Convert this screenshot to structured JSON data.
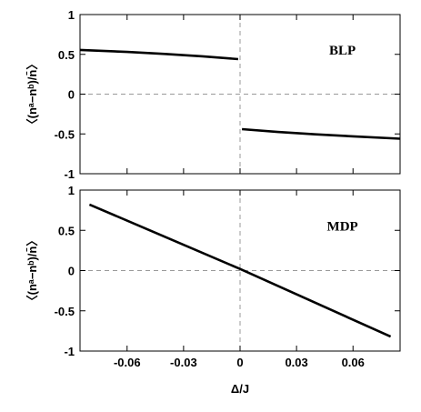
{
  "chart_data": [
    {
      "type": "line",
      "panel_label": "BLP",
      "ylabel": "〈(nᵃ−nᵇ)/n̄〉",
      "xlabel": "",
      "xlim": [
        -0.085,
        0.085
      ],
      "ylim": [
        -1,
        1
      ],
      "xticks": [
        -0.06,
        -0.03,
        0,
        0.03,
        0.06
      ],
      "yticks": [
        1,
        0.5,
        0,
        -0.5,
        -1
      ],
      "ytick_labels": [
        "1",
        "0.5",
        "0",
        "-0.5",
        "-1"
      ],
      "zero_lines": true,
      "series": [
        {
          "values": [
            [
              -0.085,
              0.555
            ],
            [
              -0.06,
              0.53
            ],
            [
              -0.04,
              0.505
            ],
            [
              -0.02,
              0.475
            ],
            [
              -0.001,
              0.44
            ]
          ]
        },
        {
          "values": [
            [
              0.001,
              -0.44
            ],
            [
              0.02,
              -0.475
            ],
            [
              0.04,
              -0.505
            ],
            [
              0.06,
              -0.53
            ],
            [
              0.085,
              -0.56
            ]
          ]
        }
      ]
    },
    {
      "type": "line",
      "panel_label": "MDP",
      "ylabel": "〈(nᵃ−nᵇ)/n̄〉",
      "xlabel": "Δ/J",
      "xlim": [
        -0.085,
        0.085
      ],
      "ylim": [
        -1,
        1
      ],
      "xticks": [
        -0.06,
        -0.03,
        0,
        0.03,
        0.06
      ],
      "xtick_labels": [
        "-0.06",
        "-0.03",
        "0",
        "0.03",
        "0.06"
      ],
      "yticks": [
        1,
        0.5,
        0,
        -0.5,
        -1
      ],
      "ytick_labels": [
        "1",
        "0.5",
        "0",
        "-0.5",
        "-1"
      ],
      "zero_lines": true,
      "series": [
        {
          "values": [
            [
              -0.08,
              0.82
            ],
            [
              0.0,
              0.02
            ],
            [
              0.08,
              -0.82
            ]
          ]
        }
      ]
    }
  ]
}
